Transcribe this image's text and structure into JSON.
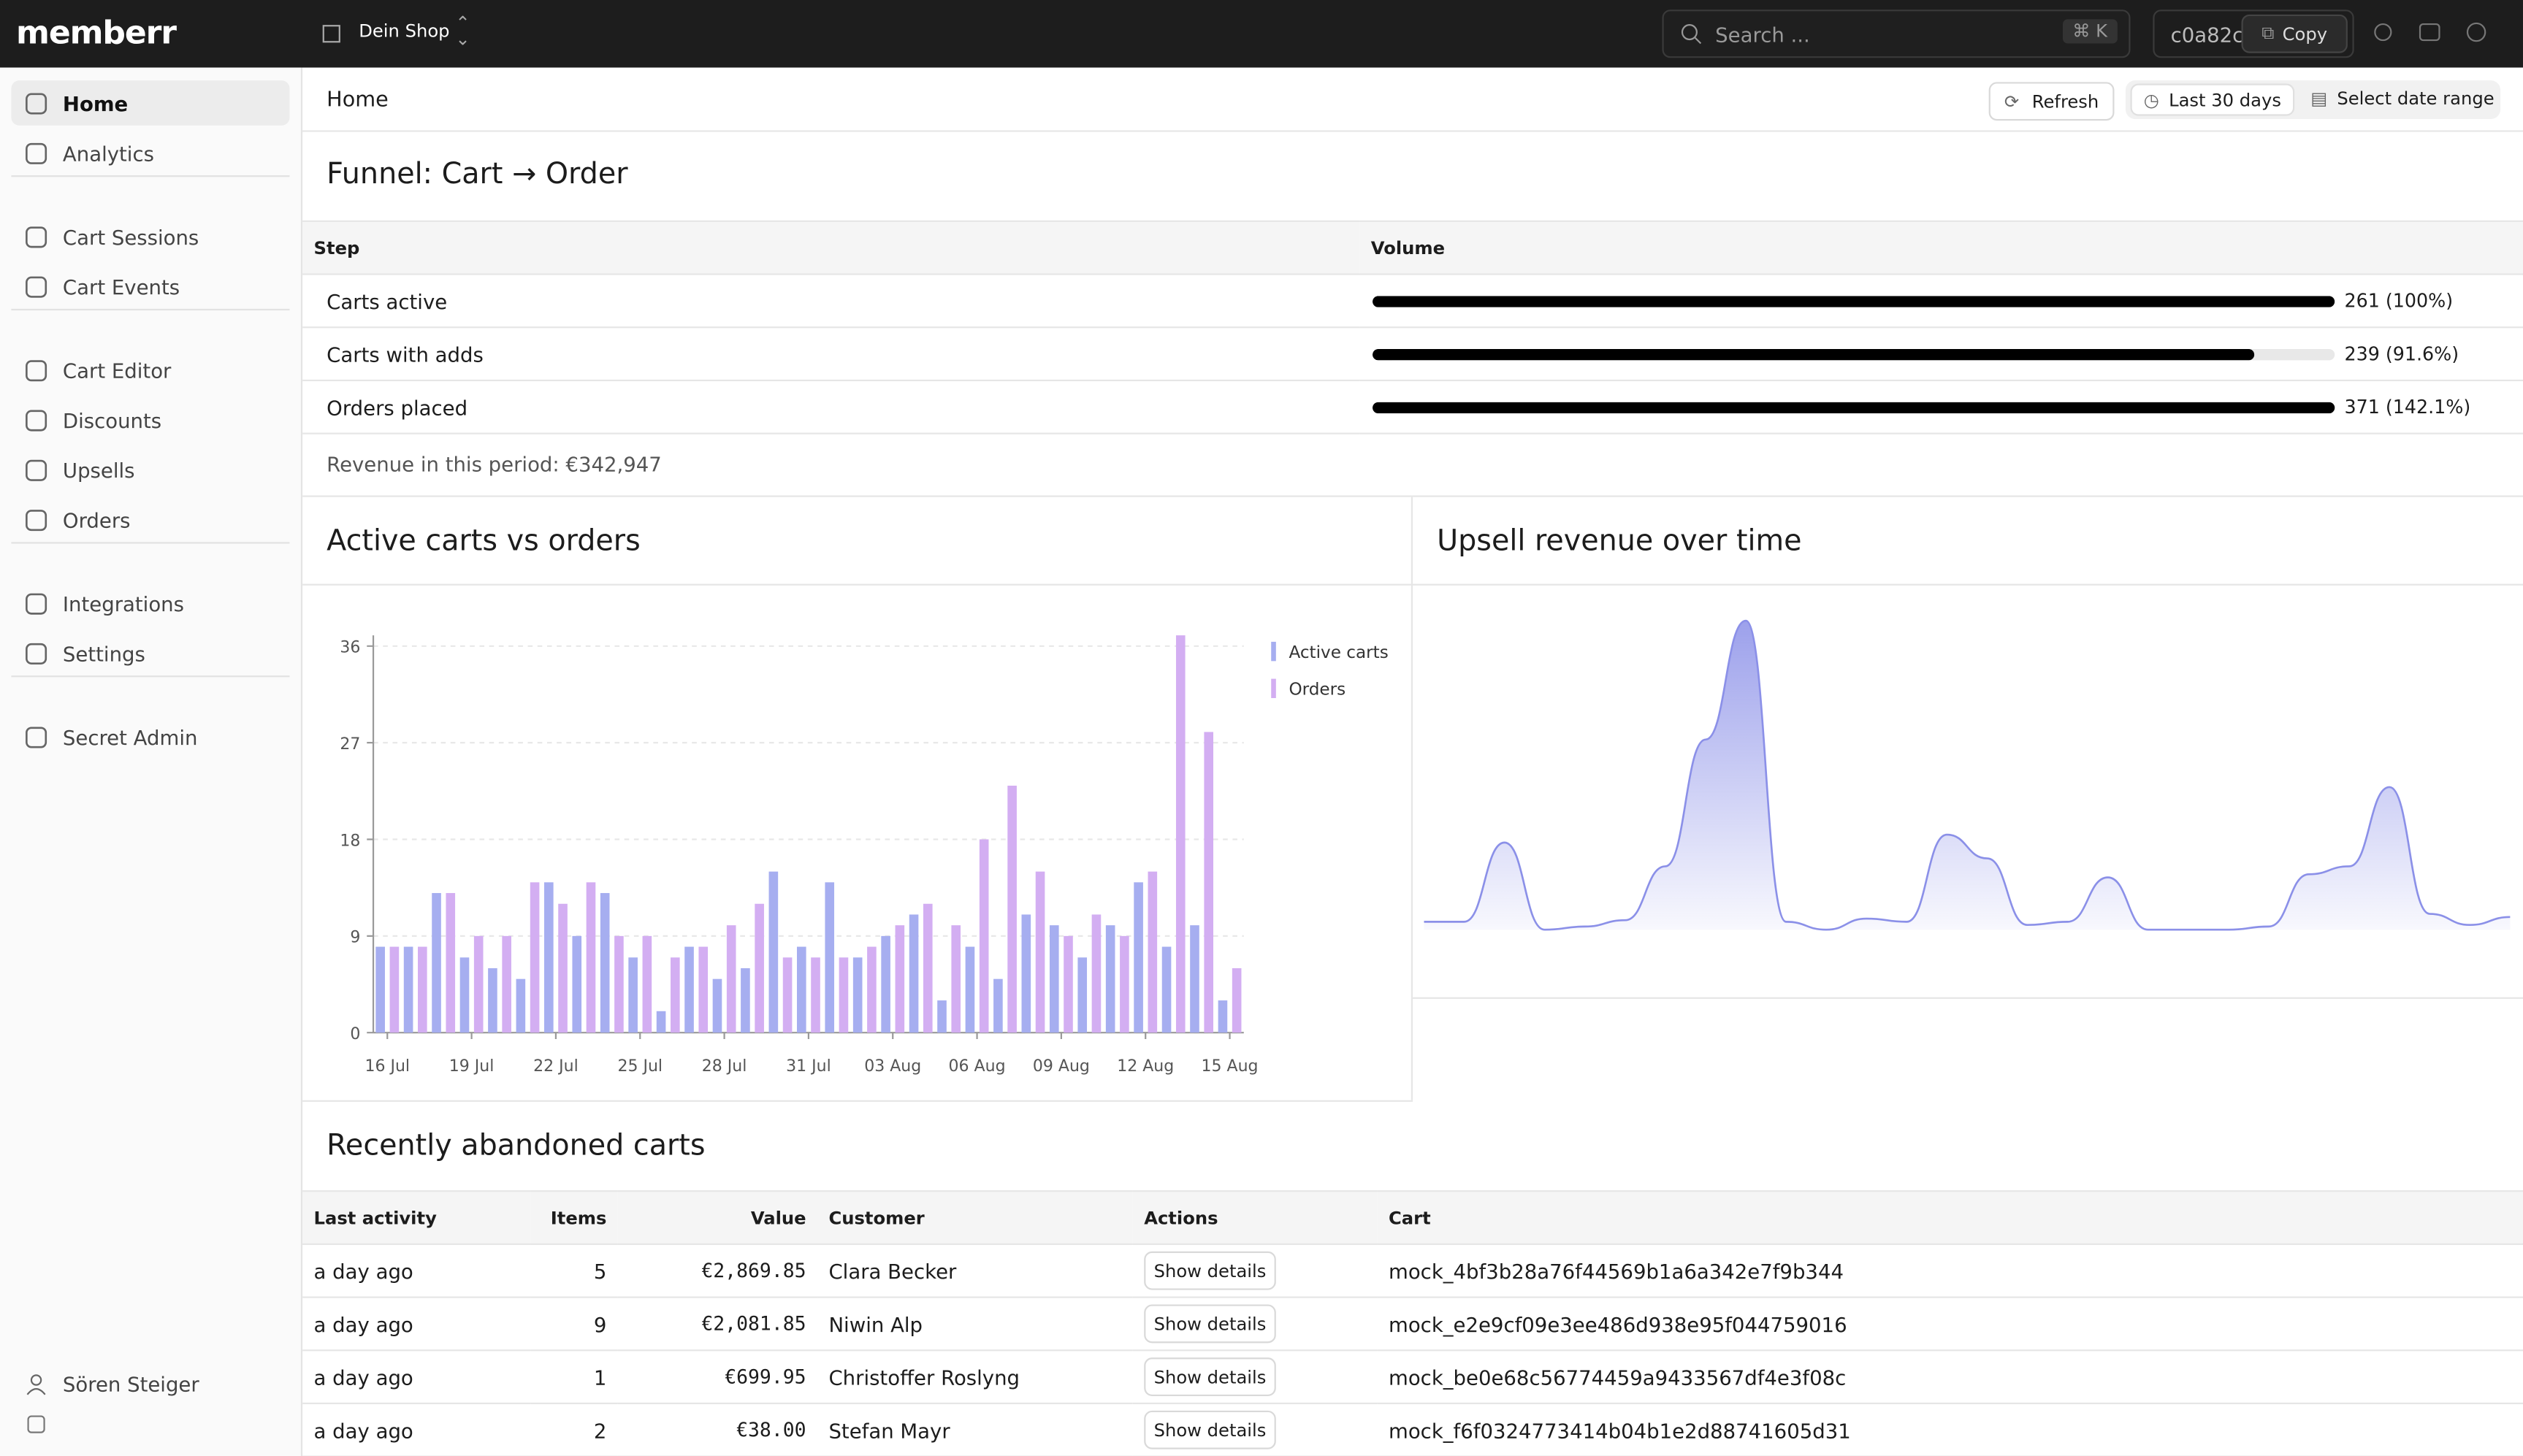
{
  "topbar": {
    "logo": "memberr",
    "shop": "Dein Shop",
    "search": "Search ...",
    "shortcut": "⌘ K",
    "id": "c0a82c",
    "copy": "Copy"
  },
  "sidebar": {
    "groups": [
      [
        "Home",
        "Analytics"
      ],
      [
        "Cart Sessions",
        "Cart Events"
      ],
      [
        "Cart Editor",
        "Discounts",
        "Upsells",
        "Orders"
      ],
      [
        "Integrations",
        "Settings"
      ],
      [
        "Secret Admin"
      ]
    ],
    "user": "Sören Steiger"
  },
  "header": {
    "title": "Home",
    "refresh": "Refresh",
    "range": "Last 30 days",
    "select": "Select date range"
  },
  "funnel": {
    "title": "Funnel: Cart → Order",
    "columns": [
      "Step",
      "Volume"
    ],
    "rows": [
      {
        "step": "Carts active",
        "percent": 100,
        "label": "261 (100%)"
      },
      {
        "step": "Carts with adds",
        "percent": 91.6,
        "label": "239 (91.6%)"
      },
      {
        "step": "Orders placed",
        "percent": 142.1,
        "label": "371 (142.1%)"
      }
    ],
    "revenue": "Revenue in this period: €342,947"
  },
  "chart_data": [
    {
      "type": "bar",
      "title": "Active carts vs orders",
      "categories": [
        "16 Jul",
        null,
        null,
        "19 Jul",
        null,
        null,
        "22 Jul",
        null,
        null,
        "25 Jul",
        null,
        null,
        "28 Jul",
        null,
        null,
        "31 Jul",
        null,
        null,
        "03 Aug",
        null,
        null,
        "06 Aug",
        null,
        null,
        "09 Aug",
        null,
        null,
        "12 Aug",
        null,
        null,
        "15 Aug"
      ],
      "series": [
        {
          "name": "Active carts",
          "color": "#a6aef0",
          "values": [
            8,
            8,
            13,
            7,
            6,
            5,
            14,
            9,
            13,
            7,
            2,
            8,
            5,
            6,
            15,
            8,
            14,
            7,
            9,
            11,
            3,
            8,
            5,
            11,
            10,
            7,
            10,
            14,
            8,
            10,
            3
          ]
        },
        {
          "name": "Orders",
          "color": "#d3aef2",
          "values": [
            8,
            8,
            13,
            9,
            9,
            14,
            12,
            14,
            9,
            9,
            7,
            8,
            10,
            12,
            7,
            7,
            7,
            8,
            10,
            12,
            10,
            18,
            23,
            15,
            9,
            11,
            9,
            15,
            37,
            28,
            6
          ]
        }
      ],
      "ylim": [
        0,
        37
      ],
      "yticks": [
        0,
        9,
        18,
        27,
        36
      ],
      "grid": true
    },
    {
      "type": "area",
      "title": "Upsell revenue over time",
      "color": "#8b90e8",
      "values": [
        5,
        5,
        55,
        0,
        2,
        6,
        40,
        120,
        195,
        5,
        0,
        7,
        5,
        60,
        45,
        3,
        5,
        33,
        0,
        0,
        0,
        2,
        35,
        40,
        90,
        10,
        3,
        8
      ],
      "ylim": [
        0,
        200
      ]
    }
  ],
  "abandoned": {
    "title": "Recently abandoned carts",
    "columns": [
      "Last activity",
      "Items",
      "Value",
      "Customer",
      "Actions",
      "Cart"
    ],
    "rows": [
      [
        "a day ago",
        5,
        "€2,869.85",
        "Clara Becker",
        "Show details",
        "mock_4bf3b28a76f44569b1a6a342e7f9b344"
      ],
      [
        "a day ago",
        9,
        "€2,081.85",
        "Niwin Alp",
        "Show details",
        "mock_e2e9cf09e3ee486d938e95f044759016"
      ],
      [
        "a day ago",
        1,
        "€699.95",
        "Christoffer Roslyng",
        "Show details",
        "mock_be0e68c56774459a9433567df4e3f08c"
      ],
      [
        "a day ago",
        2,
        "€38.00",
        "Stefan Mayr",
        "Show details",
        "mock_f6f0324773414b04b1e2d88741605d31"
      ]
    ]
  }
}
